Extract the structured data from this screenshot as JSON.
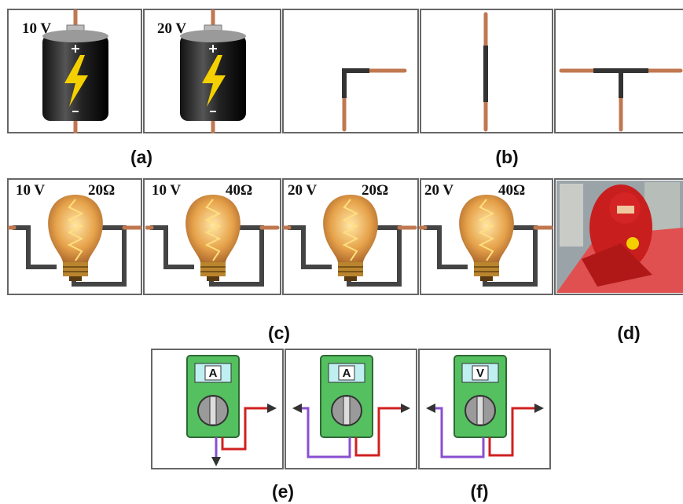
{
  "batteries": [
    {
      "label": "10 V"
    },
    {
      "label": "20 V"
    }
  ],
  "bulbs": [
    {
      "voltage": "10 V",
      "resistance": "20Ω"
    },
    {
      "voltage": "10 V",
      "resistance": "40Ω"
    },
    {
      "voltage": "20 V",
      "resistance": "20Ω"
    },
    {
      "voltage": "20 V",
      "resistance": "40Ω"
    }
  ],
  "meters": [
    {
      "label": "A"
    },
    {
      "label": "A"
    },
    {
      "label": "V"
    }
  ],
  "captions": {
    "a": "(a)",
    "b": "(b)",
    "c": "(c)",
    "d": "(d)",
    "e": "(e)",
    "f": "(f)"
  }
}
